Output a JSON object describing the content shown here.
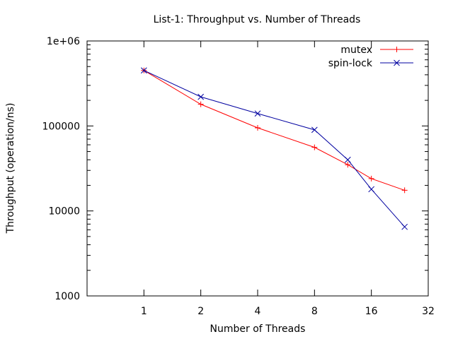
{
  "chart_data": {
    "type": "line",
    "title": "List-1: Throughput vs. Number of Threads",
    "xlabel": "Number of Threads",
    "ylabel": "Throughput (operation/ns)",
    "x_scale": "log2",
    "y_scale": "log10",
    "xlim": [
      0.5,
      32
    ],
    "ylim": [
      1000,
      1000000
    ],
    "x_ticks": [
      1,
      2,
      4,
      8,
      16,
      32
    ],
    "x_tick_labels": [
      "1",
      "2",
      "4",
      "8",
      "16",
      "32"
    ],
    "y_ticks": [
      1000,
      10000,
      100000,
      1000000
    ],
    "y_tick_labels": [
      "1000",
      "10000",
      "100000",
      "1e+06"
    ],
    "legend_position": "top-right",
    "series": [
      {
        "name": "mutex",
        "color": "#ff0000",
        "marker": "plus",
        "points": [
          [
            1,
            450000
          ],
          [
            2,
            180000
          ],
          [
            4,
            95000
          ],
          [
            8,
            56000
          ],
          [
            12,
            35000
          ],
          [
            16,
            24000
          ],
          [
            24,
            17500
          ]
        ]
      },
      {
        "name": "spin-lock",
        "color": "#0000a0",
        "marker": "cross",
        "points": [
          [
            1,
            450000
          ],
          [
            2,
            220000
          ],
          [
            4,
            140000
          ],
          [
            8,
            90000
          ],
          [
            12,
            40000
          ],
          [
            16,
            18000
          ],
          [
            24,
            6500
          ]
        ]
      }
    ]
  }
}
